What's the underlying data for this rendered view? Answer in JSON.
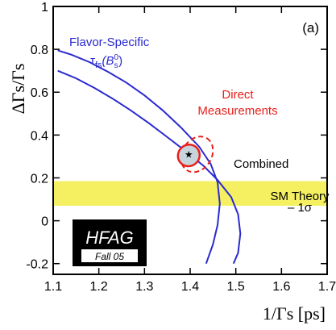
{
  "chart_data": {
    "type": "line",
    "panel_label": "(a)",
    "xlabel": "1/Γs [ps]",
    "ylabel": "ΔΓs/Γs",
    "xlim": [
      1.1,
      1.7
    ],
    "ylim": [
      -0.25,
      1.0
    ],
    "x_ticks": [
      "1.1",
      "1.2",
      "1.3",
      "1.4",
      "1.5",
      "1.6",
      "1.7"
    ],
    "y_ticks": [
      "-0.2",
      "0",
      "0.2",
      "0.4",
      "0.6",
      "0.8",
      "1"
    ],
    "grid": false,
    "series": [
      {
        "name": "Flavor-Specific",
        "color": "#2a2ad0",
        "curves": [
          [
            [
              1.11,
              0.795
            ],
            [
              1.14,
              0.775
            ],
            [
              1.18,
              0.74
            ],
            [
              1.22,
              0.695
            ],
            [
              1.26,
              0.645
            ],
            [
              1.3,
              0.585
            ],
            [
              1.34,
              0.515
            ],
            [
              1.38,
              0.435
            ],
            [
              1.42,
              0.345
            ],
            [
              1.445,
              0.265
            ],
            [
              1.46,
              0.18
            ],
            [
              1.465,
              0.08
            ],
            [
              1.46,
              -0.02
            ],
            [
              1.45,
              -0.11
            ],
            [
              1.435,
              -0.2
            ]
          ],
          [
            [
              1.11,
              0.7
            ],
            [
              1.15,
              0.665
            ],
            [
              1.19,
              0.62
            ],
            [
              1.23,
              0.57
            ],
            [
              1.27,
              0.515
            ],
            [
              1.31,
              0.455
            ],
            [
              1.35,
              0.39
            ],
            [
              1.39,
              0.325
            ],
            [
              1.43,
              0.255
            ],
            [
              1.46,
              0.19
            ],
            [
              1.49,
              0.11
            ],
            [
              1.505,
              0.03
            ],
            [
              1.51,
              -0.06
            ],
            [
              1.505,
              -0.15
            ],
            [
              1.495,
              -0.2
            ]
          ]
        ]
      },
      {
        "name": "Direct Measurements",
        "color": "#e8201a",
        "style": "dashed",
        "ellipse": {
          "center": [
            1.415,
            0.31
          ],
          "rx_data": 0.075,
          "ry_data": 0.125,
          "angle_deg": -58
        }
      },
      {
        "name": "Combined",
        "color": "#e8201a",
        "fill": "#c8d4dc",
        "ellipse": {
          "center": [
            1.397,
            0.305
          ],
          "rx_data": 0.044,
          "ry_data": 0.09,
          "angle_deg": -40
        },
        "marker": [
          1.397,
          0.31
        ]
      }
    ],
    "band": {
      "name": "SM Theory",
      "y_range": [
        0.07,
        0.185
      ],
      "color": "#f5f062"
    },
    "labels": {
      "flavor_specific_1": "Flavor-Specific",
      "flavor_specific_2_symbol": "τ",
      "flavor_specific_2_sub": "fs",
      "flavor_specific_2_arg": "(B",
      "flavor_specific_2_arg_sub": "s",
      "flavor_specific_2_arg_sup": "0",
      "flavor_specific_2_close": ")",
      "direct_1": "Direct",
      "direct_2": "Measurements",
      "combined": "Combined",
      "sm_theory_1": "SM Theory",
      "sm_theory_2": "– 1σ"
    },
    "logo": {
      "title": "HFAG",
      "subtitle": "Fall 05"
    }
  }
}
